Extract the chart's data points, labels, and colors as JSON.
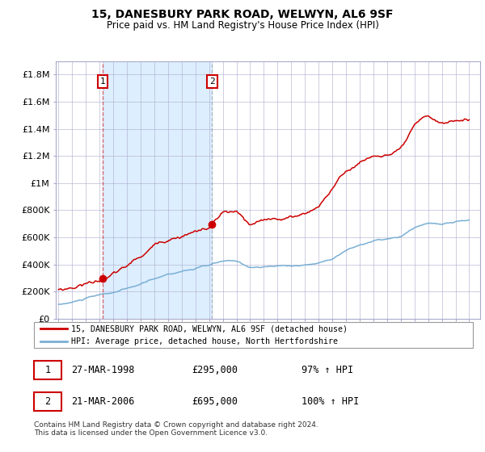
{
  "title": "15, DANESBURY PARK ROAD, WELWYN, AL6 9SF",
  "subtitle": "Price paid vs. HM Land Registry's House Price Index (HPI)",
  "legend_line1": "15, DANESBURY PARK ROAD, WELWYN, AL6 9SF (detached house)",
  "legend_line2": "HPI: Average price, detached house, North Hertfordshire",
  "annotation1_date": "27-MAR-1998",
  "annotation1_price": "£295,000",
  "annotation1_hpi": "97% ↑ HPI",
  "annotation2_date": "21-MAR-2006",
  "annotation2_price": "£695,000",
  "annotation2_hpi": "100% ↑ HPI",
  "footer": "Contains HM Land Registry data © Crown copyright and database right 2024.\nThis data is licensed under the Open Government Licence v3.0.",
  "red_color": "#cc0000",
  "blue_color": "#7aafd4",
  "highlight_color": "#ddeeff",
  "grid_color": "#aaaacc",
  "background_color": "#ffffff",
  "sale1_x": 1998.23,
  "sale1_y": 295000,
  "sale2_x": 2006.22,
  "sale2_y": 695000,
  "ylim": [
    0,
    1900000
  ],
  "xlim_start": 1994.8,
  "xlim_end": 2025.8,
  "hpi_key_years": [
    1995,
    1996,
    1997,
    1998,
    1999,
    2000,
    2001,
    2002,
    2003,
    2004,
    2005,
    2006,
    2007,
    2008,
    2009,
    2010,
    2011,
    2012,
    2013,
    2014,
    2015,
    2016,
    2017,
    2018,
    2019,
    2020,
    2021,
    2022,
    2023,
    2024,
    2025
  ],
  "hpi_key_vals": [
    105000,
    120000,
    148000,
    168000,
    185000,
    210000,
    240000,
    280000,
    315000,
    340000,
    360000,
    380000,
    405000,
    400000,
    360000,
    360000,
    365000,
    370000,
    375000,
    390000,
    430000,
    490000,
    530000,
    560000,
    570000,
    580000,
    640000,
    680000,
    660000,
    680000,
    690000
  ],
  "red_key_years": [
    1995,
    1996,
    1997,
    1998,
    1999,
    2000,
    2001,
    2002,
    2003,
    2004,
    2005,
    2006,
    2007,
    2008,
    2009,
    2010,
    2011,
    2012,
    2013,
    2014,
    2015,
    2016,
    2017,
    2018,
    2019,
    2020,
    2021,
    2022,
    2023,
    2024,
    2025
  ],
  "red_key_vals": [
    215000,
    235000,
    270000,
    295000,
    340000,
    395000,
    460000,
    540000,
    600000,
    640000,
    670000,
    695000,
    800000,
    790000,
    680000,
    700000,
    720000,
    730000,
    760000,
    820000,
    960000,
    1080000,
    1150000,
    1200000,
    1210000,
    1230000,
    1380000,
    1440000,
    1380000,
    1400000,
    1420000
  ]
}
